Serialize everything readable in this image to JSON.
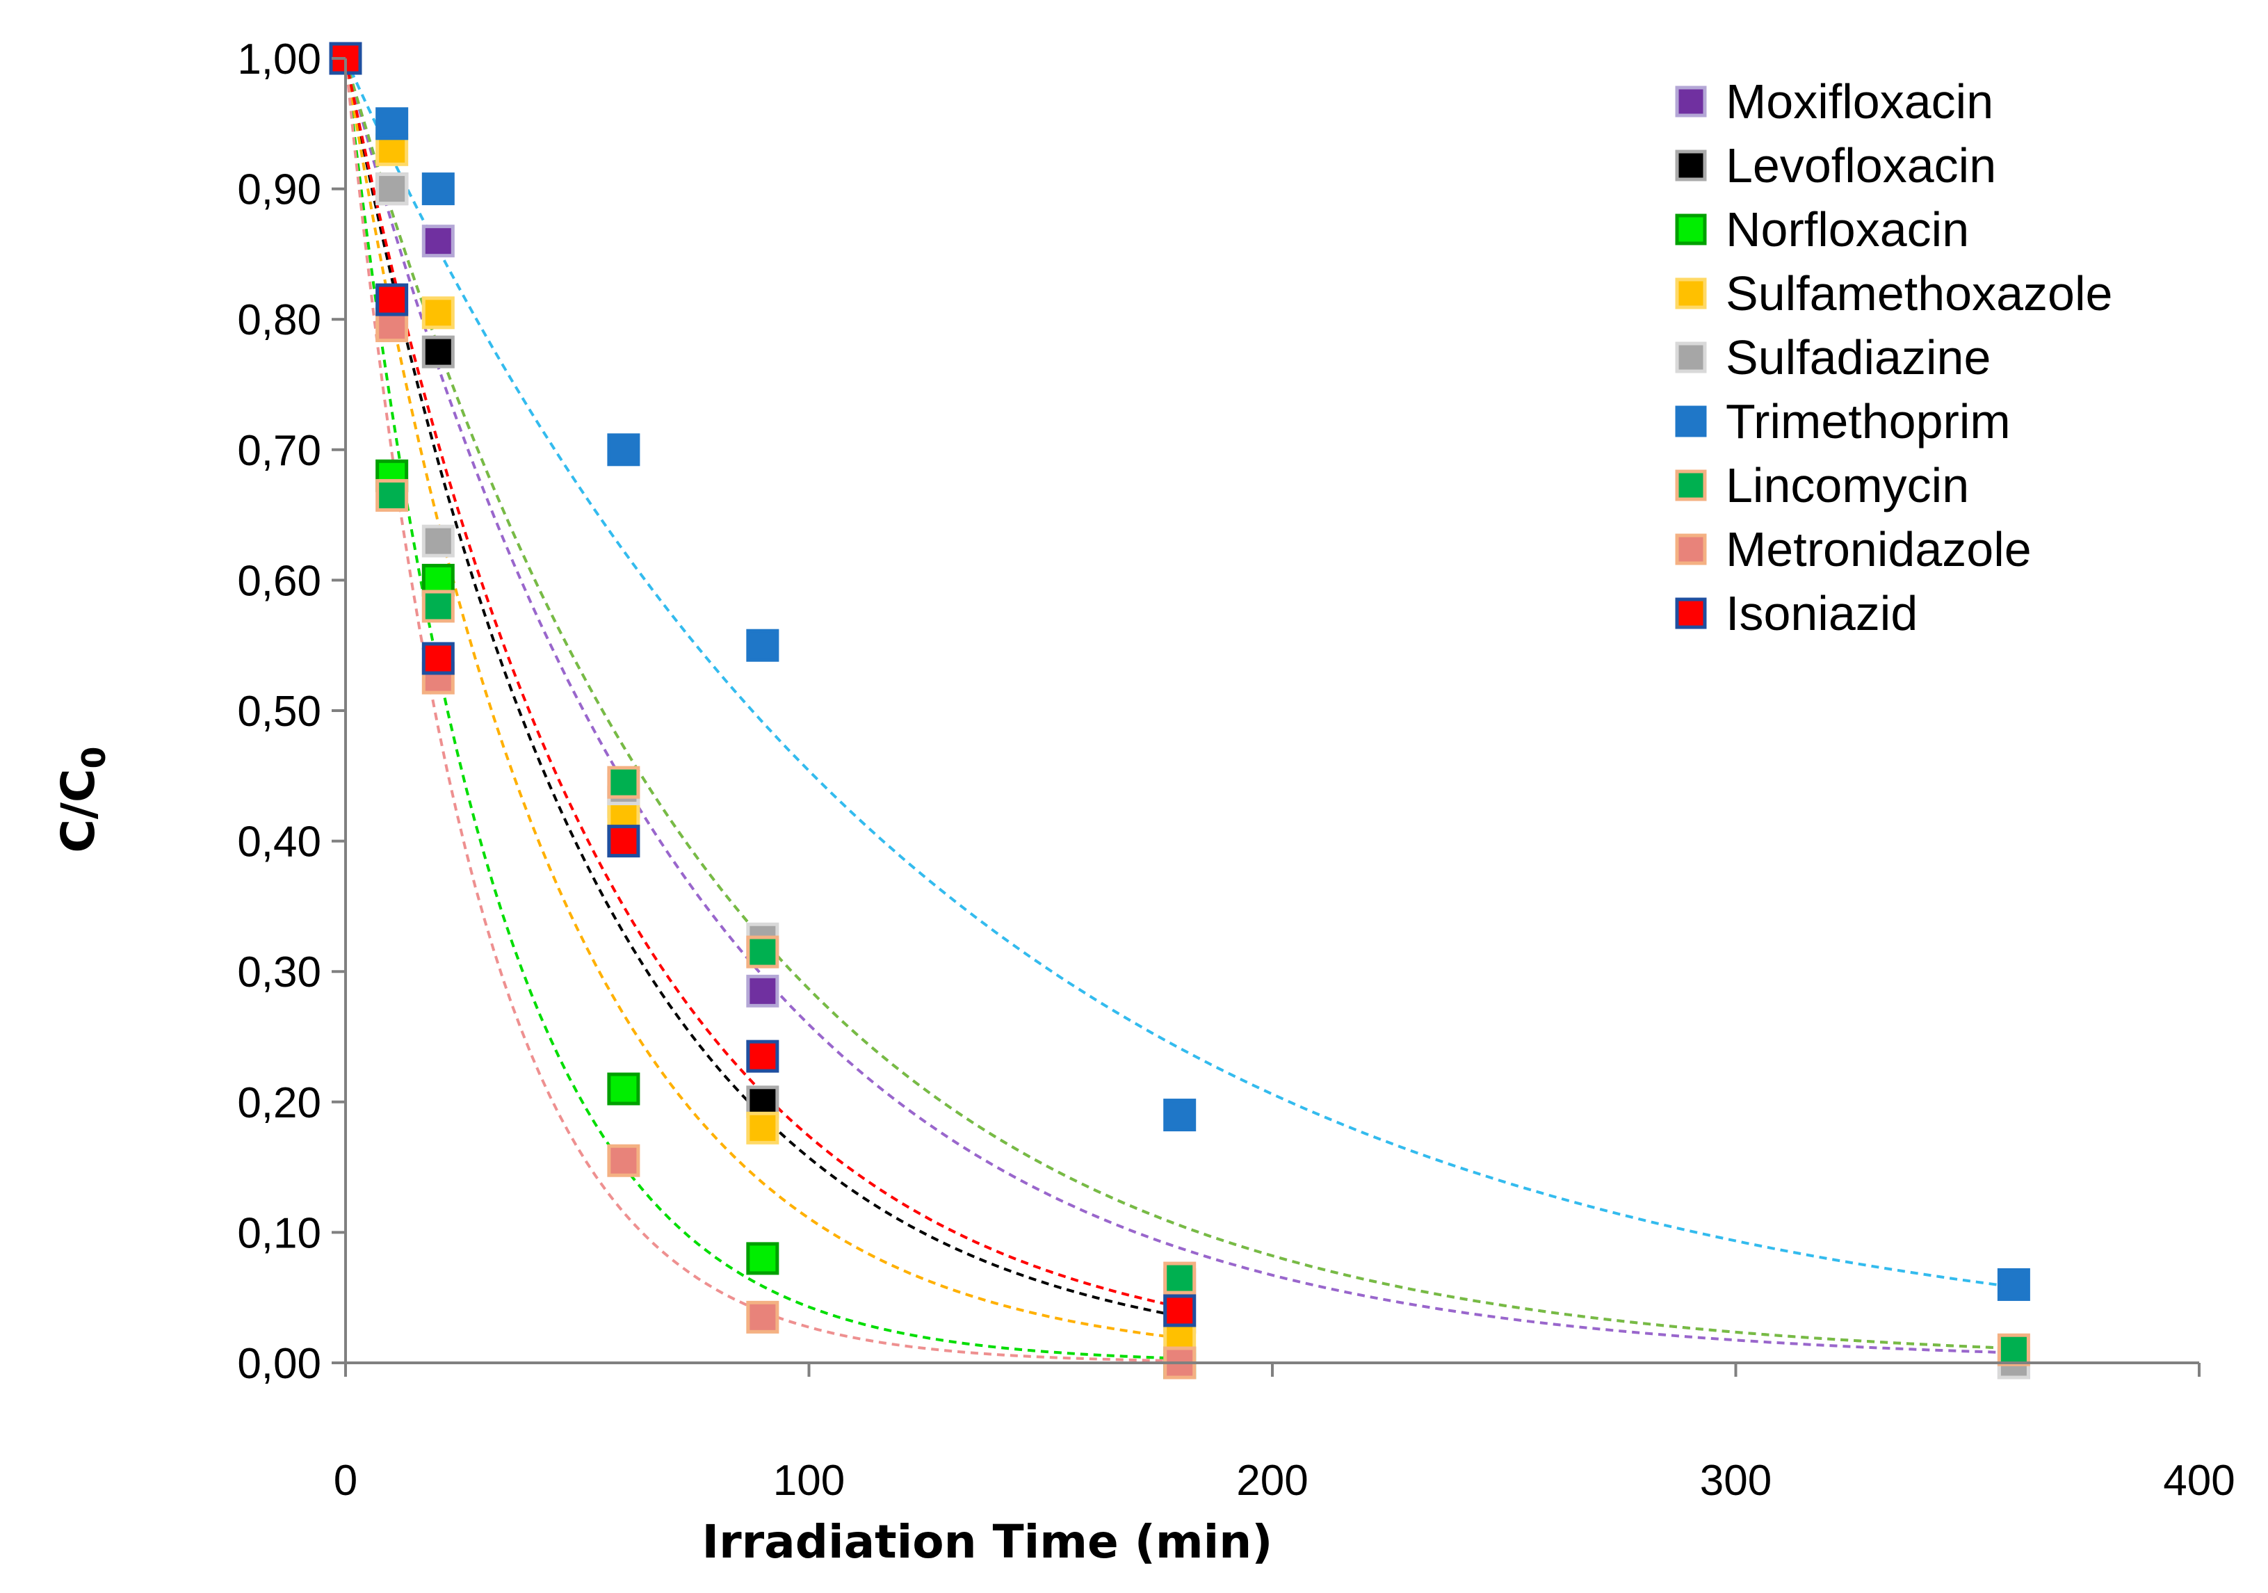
{
  "chart_data": {
    "type": "scatter",
    "title": "",
    "xlabel": "Irradiation Time (min)",
    "ylabel_main": "C/C",
    "ylabel_sub": "0",
    "xlim": [
      0,
      400
    ],
    "ylim": [
      0,
      1
    ],
    "x_ticks": [
      0,
      100,
      200,
      300,
      400
    ],
    "x_tick_labels": [
      "0",
      "100",
      "200",
      "300",
      "400"
    ],
    "y_ticks": [
      0,
      0.1,
      0.2,
      0.3,
      0.4,
      0.5,
      0.6,
      0.7,
      0.8,
      0.9,
      1.0
    ],
    "y_tick_labels": [
      "0,00",
      "0,10",
      "0,20",
      "0,30",
      "0,40",
      "0,50",
      "0,60",
      "0,70",
      "0,80",
      "0,90",
      "1,00"
    ],
    "grid": false,
    "legend_position": "top-right",
    "series": [
      {
        "name": "Moxifloxacin",
        "fill": "#7030a0",
        "edge": "#b4a7d6",
        "trend": "#9966cc",
        "trend_k": 0.0135,
        "trend_end": 360,
        "x": [
          0,
          10,
          20,
          60,
          90,
          180,
          360
        ],
        "y": [
          1.0,
          0.9,
          0.86,
          0.43,
          0.285,
          0.06,
          0.0
        ]
      },
      {
        "name": "Levofloxacin",
        "fill": "#000000",
        "edge": "#aaaaaa",
        "trend": "#000000",
        "trend_k": 0.0185,
        "trend_end": 180,
        "x": [
          0,
          10,
          20,
          60,
          90,
          180
        ],
        "y": [
          1.0,
          0.9,
          0.775,
          0.4,
          0.2,
          0.035
        ]
      },
      {
        "name": "Norfloxacin",
        "fill": "#00ee00",
        "edge": "#00a000",
        "trend": "#00dd00",
        "trend_k": 0.0315,
        "trend_end": 180,
        "x": [
          0,
          10,
          20,
          60,
          90,
          180
        ],
        "y": [
          1.0,
          0.68,
          0.6,
          0.21,
          0.08,
          0.0
        ]
      },
      {
        "name": "Sulfamethoxazole",
        "fill": "#ffc000",
        "edge": "#ffd966",
        "trend": "#ffb000",
        "trend_k": 0.022,
        "trend_end": 180,
        "x": [
          0,
          10,
          20,
          60,
          90,
          180
        ],
        "y": [
          1.0,
          0.93,
          0.805,
          0.42,
          0.18,
          0.02
        ]
      },
      {
        "name": "Sulfadiazine",
        "fill": "#a6a6a6",
        "edge": "#d9d9d9",
        "trend": "#b0b0b0",
        "trend_k": 0.0125,
        "trend_end": 360,
        "x": [
          0,
          10,
          20,
          60,
          90,
          180,
          360
        ],
        "y": [
          1.0,
          0.9,
          0.63,
          0.44,
          0.325,
          0.06,
          0.0
        ]
      },
      {
        "name": "Trimethoprim",
        "fill": "#1f77c8",
        "edge": "#1f77c8",
        "trend": "#33bbee",
        "trend_k": 0.0079,
        "trend_end": 360,
        "x": [
          0,
          10,
          20,
          60,
          90,
          180,
          360
        ],
        "y": [
          1.0,
          0.95,
          0.9,
          0.7,
          0.55,
          0.19,
          0.06
        ]
      },
      {
        "name": "Lincomycin",
        "fill": "#00b050",
        "edge": "#f4b183",
        "trend": "#77bb44",
        "trend_k": 0.0125,
        "trend_end": 360,
        "x": [
          0,
          10,
          20,
          60,
          90,
          180,
          360
        ],
        "y": [
          1.0,
          0.665,
          0.58,
          0.445,
          0.315,
          0.065,
          0.01
        ]
      },
      {
        "name": "Metronidazole",
        "fill": "#e8837a",
        "edge": "#f4b183",
        "trend": "#ee9090",
        "trend_k": 0.036,
        "trend_end": 180,
        "x": [
          0,
          10,
          20,
          60,
          90,
          180
        ],
        "y": [
          1.0,
          0.795,
          0.525,
          0.155,
          0.035,
          0.0
        ]
      },
      {
        "name": "Isoniazid",
        "fill": "#ff0000",
        "edge": "#1f4fa0",
        "trend": "#ff0000",
        "trend_k": 0.0175,
        "trend_end": 180,
        "x": [
          0,
          10,
          20,
          60,
          90,
          180
        ],
        "y": [
          1.0,
          0.815,
          0.54,
          0.4,
          0.235,
          0.04
        ]
      }
    ]
  }
}
